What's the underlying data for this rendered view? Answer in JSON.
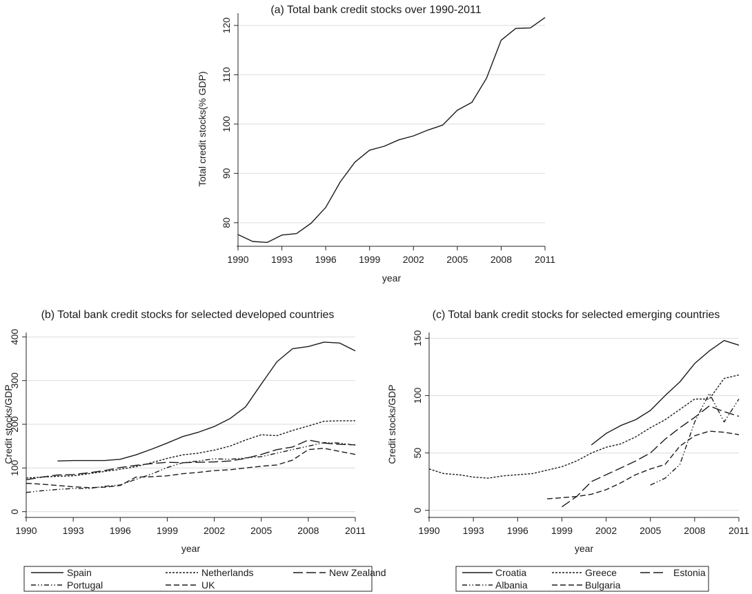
{
  "chart_data": [
    {
      "id": "a",
      "type": "line",
      "title": "(a) Total bank credit stocks over 1990-2011",
      "xlabel": "year",
      "ylabel": "Total credit stocks(% GDP)",
      "xticks": [
        1990,
        1993,
        1996,
        1999,
        2002,
        2005,
        2008,
        2011
      ],
      "yticks": [
        80,
        90,
        100,
        110,
        120
      ],
      "xlim": [
        1990,
        2011
      ],
      "ylim": [
        75.5,
        122.5
      ],
      "grid": "horizontal",
      "series": [
        {
          "style": "solid",
          "x": [
            1990,
            1991,
            1992,
            1993,
            1994,
            1995,
            1996,
            1997,
            1998,
            1999,
            2000,
            2001,
            2002,
            2003,
            2004,
            2005,
            2006,
            2007,
            2008,
            2009,
            2010,
            2011
          ],
          "y": [
            77.6,
            76.2,
            76.0,
            77.5,
            77.8,
            79.9,
            83.1,
            88.3,
            92.3,
            94.7,
            95.5,
            96.8,
            97.6,
            98.8,
            99.8,
            102.8,
            104.4,
            109.3,
            117.0,
            119.4,
            119.5,
            121.6
          ]
        }
      ]
    },
    {
      "id": "b",
      "type": "line",
      "title": "(b) Total bank credit stocks for selected developed countries",
      "xlabel": "year",
      "ylabel": "Credit stocks/GDP",
      "xticks": [
        1990,
        1993,
        1996,
        1999,
        2002,
        2005,
        2008,
        2011
      ],
      "yticks": [
        0,
        100,
        200,
        300,
        400
      ],
      "xlim": [
        1990,
        2011
      ],
      "ylim": [
        -10,
        410
      ],
      "grid": "horizontal",
      "legend_position": "bottom",
      "series": [
        {
          "name": "Spain",
          "style": "solid",
          "x": [
            1992,
            1993,
            1994,
            1995,
            1996,
            1997,
            1998,
            1999,
            2000,
            2001,
            2002,
            2003,
            2004,
            2005,
            2006,
            2007,
            2008,
            2009,
            2010,
            2011
          ],
          "y": [
            116,
            117,
            117,
            117,
            120,
            130,
            143,
            157,
            172,
            182,
            195,
            213,
            240,
            292,
            343,
            373,
            378,
            388,
            386,
            368
          ]
        },
        {
          "name": "Netherlands",
          "style": "short-dash",
          "x": [
            1990,
            1991,
            1992,
            1993,
            1994,
            1995,
            1996,
            1997,
            1998,
            1999,
            2000,
            2001,
            2002,
            2003,
            2004,
            2005,
            2006,
            2007,
            2008,
            2009,
            2010,
            2011
          ],
          "y": [
            77,
            79,
            81,
            82,
            87,
            92,
            97,
            103,
            112,
            122,
            130,
            134,
            141,
            150,
            164,
            176,
            174,
            186,
            196,
            207,
            208,
            208
          ]
        },
        {
          "name": "New Zealand",
          "style": "long-dash",
          "x": [
            1990,
            1991,
            1992,
            1993,
            1994,
            1995,
            1996,
            1997,
            1998,
            1999,
            2000,
            2001,
            2002,
            2003,
            2004,
            2005,
            2006,
            2007,
            2008,
            2009,
            2010,
            2011
          ],
          "y": [
            73,
            79,
            84,
            85,
            89,
            94,
            101,
            106,
            110,
            113,
            112,
            113,
            114,
            116,
            122,
            131,
            142,
            148,
            164,
            157,
            154,
            153
          ]
        },
        {
          "name": "Portugal",
          "style": "dash-dot-dot",
          "x": [
            1990,
            1991,
            1992,
            1993,
            1994,
            1995,
            1996,
            1997,
            1998,
            1999,
            2000,
            2001,
            2002,
            2003,
            2004,
            2005,
            2006,
            2007,
            2008,
            2009,
            2010,
            2011
          ],
          "y": [
            44,
            48,
            51,
            53,
            53,
            58,
            61,
            74,
            86,
            101,
            112,
            116,
            121,
            120,
            123,
            126,
            134,
            142,
            150,
            158,
            157,
            152
          ]
        },
        {
          "name": "UK",
          "style": "medium-dash",
          "x": [
            1990,
            1991,
            1992,
            1993,
            1994,
            1995,
            1996,
            1997,
            1998,
            1999,
            2000,
            2001,
            2002,
            2003,
            2004,
            2005,
            2006,
            2007,
            2008,
            2009,
            2010,
            2011
          ],
          "y": [
            65,
            63,
            60,
            57,
            55,
            56,
            60,
            79,
            80,
            82,
            87,
            90,
            94,
            96,
            100,
            104,
            107,
            118,
            142,
            145,
            138,
            131
          ]
        }
      ]
    },
    {
      "id": "c",
      "type": "line",
      "title": "(c) Total bank credit stocks for selected emerging countries",
      "xlabel": "year",
      "ylabel": "Credit stocks/GDP",
      "xticks": [
        1990,
        1993,
        1996,
        1999,
        2002,
        2005,
        2008,
        2011
      ],
      "yticks": [
        0,
        50,
        100,
        150
      ],
      "xlim": [
        1990,
        2011
      ],
      "ylim": [
        -5,
        155
      ],
      "grid": "horizontal",
      "legend_position": "bottom",
      "series": [
        {
          "name": "Croatia",
          "style": "solid",
          "x": [
            2001,
            2002,
            2003,
            2004,
            2005,
            2006,
            2007,
            2008,
            2009,
            2010,
            2011
          ],
          "y": [
            57,
            67,
            74,
            79,
            87,
            100,
            112,
            128,
            139,
            148,
            144
          ]
        },
        {
          "name": "Greece",
          "style": "short-dash",
          "x": [
            1990,
            1991,
            1992,
            1993,
            1994,
            1995,
            1996,
            1997,
            1998,
            1999,
            2000,
            2001,
            2002,
            2003,
            2004,
            2005,
            2006,
            2007,
            2008,
            2009,
            2010,
            2011
          ],
          "y": [
            36,
            32,
            31,
            29,
            28,
            30,
            31,
            32,
            35,
            38,
            43,
            50,
            55,
            58,
            64,
            72,
            79,
            88,
            97,
            97,
            115,
            118
          ]
        },
        {
          "name": "Estonia",
          "style": "long-dash",
          "x": [
            1999,
            2000,
            2001,
            2002,
            2003,
            2004,
            2005,
            2006,
            2007,
            2008,
            2009,
            2010,
            2011
          ],
          "y": [
            3,
            12,
            25,
            31,
            37,
            43,
            50,
            62,
            72,
            81,
            91,
            86,
            82
          ]
        },
        {
          "name": "Albania",
          "style": "dash-dot-dot",
          "x": [
            2005,
            2006,
            2007,
            2008,
            2009,
            2010,
            2011
          ],
          "y": [
            22,
            28,
            40,
            77,
            102,
            77,
            97
          ]
        },
        {
          "name": "Bulgaria",
          "style": "medium-dash",
          "x": [
            1998,
            1999,
            2000,
            2001,
            2002,
            2003,
            2004,
            2005,
            2006,
            2007,
            2008,
            2009,
            2010,
            2011
          ],
          "y": [
            10,
            11,
            12,
            14,
            18,
            24,
            31,
            36,
            40,
            56,
            65,
            69,
            68,
            66
          ]
        }
      ]
    }
  ]
}
